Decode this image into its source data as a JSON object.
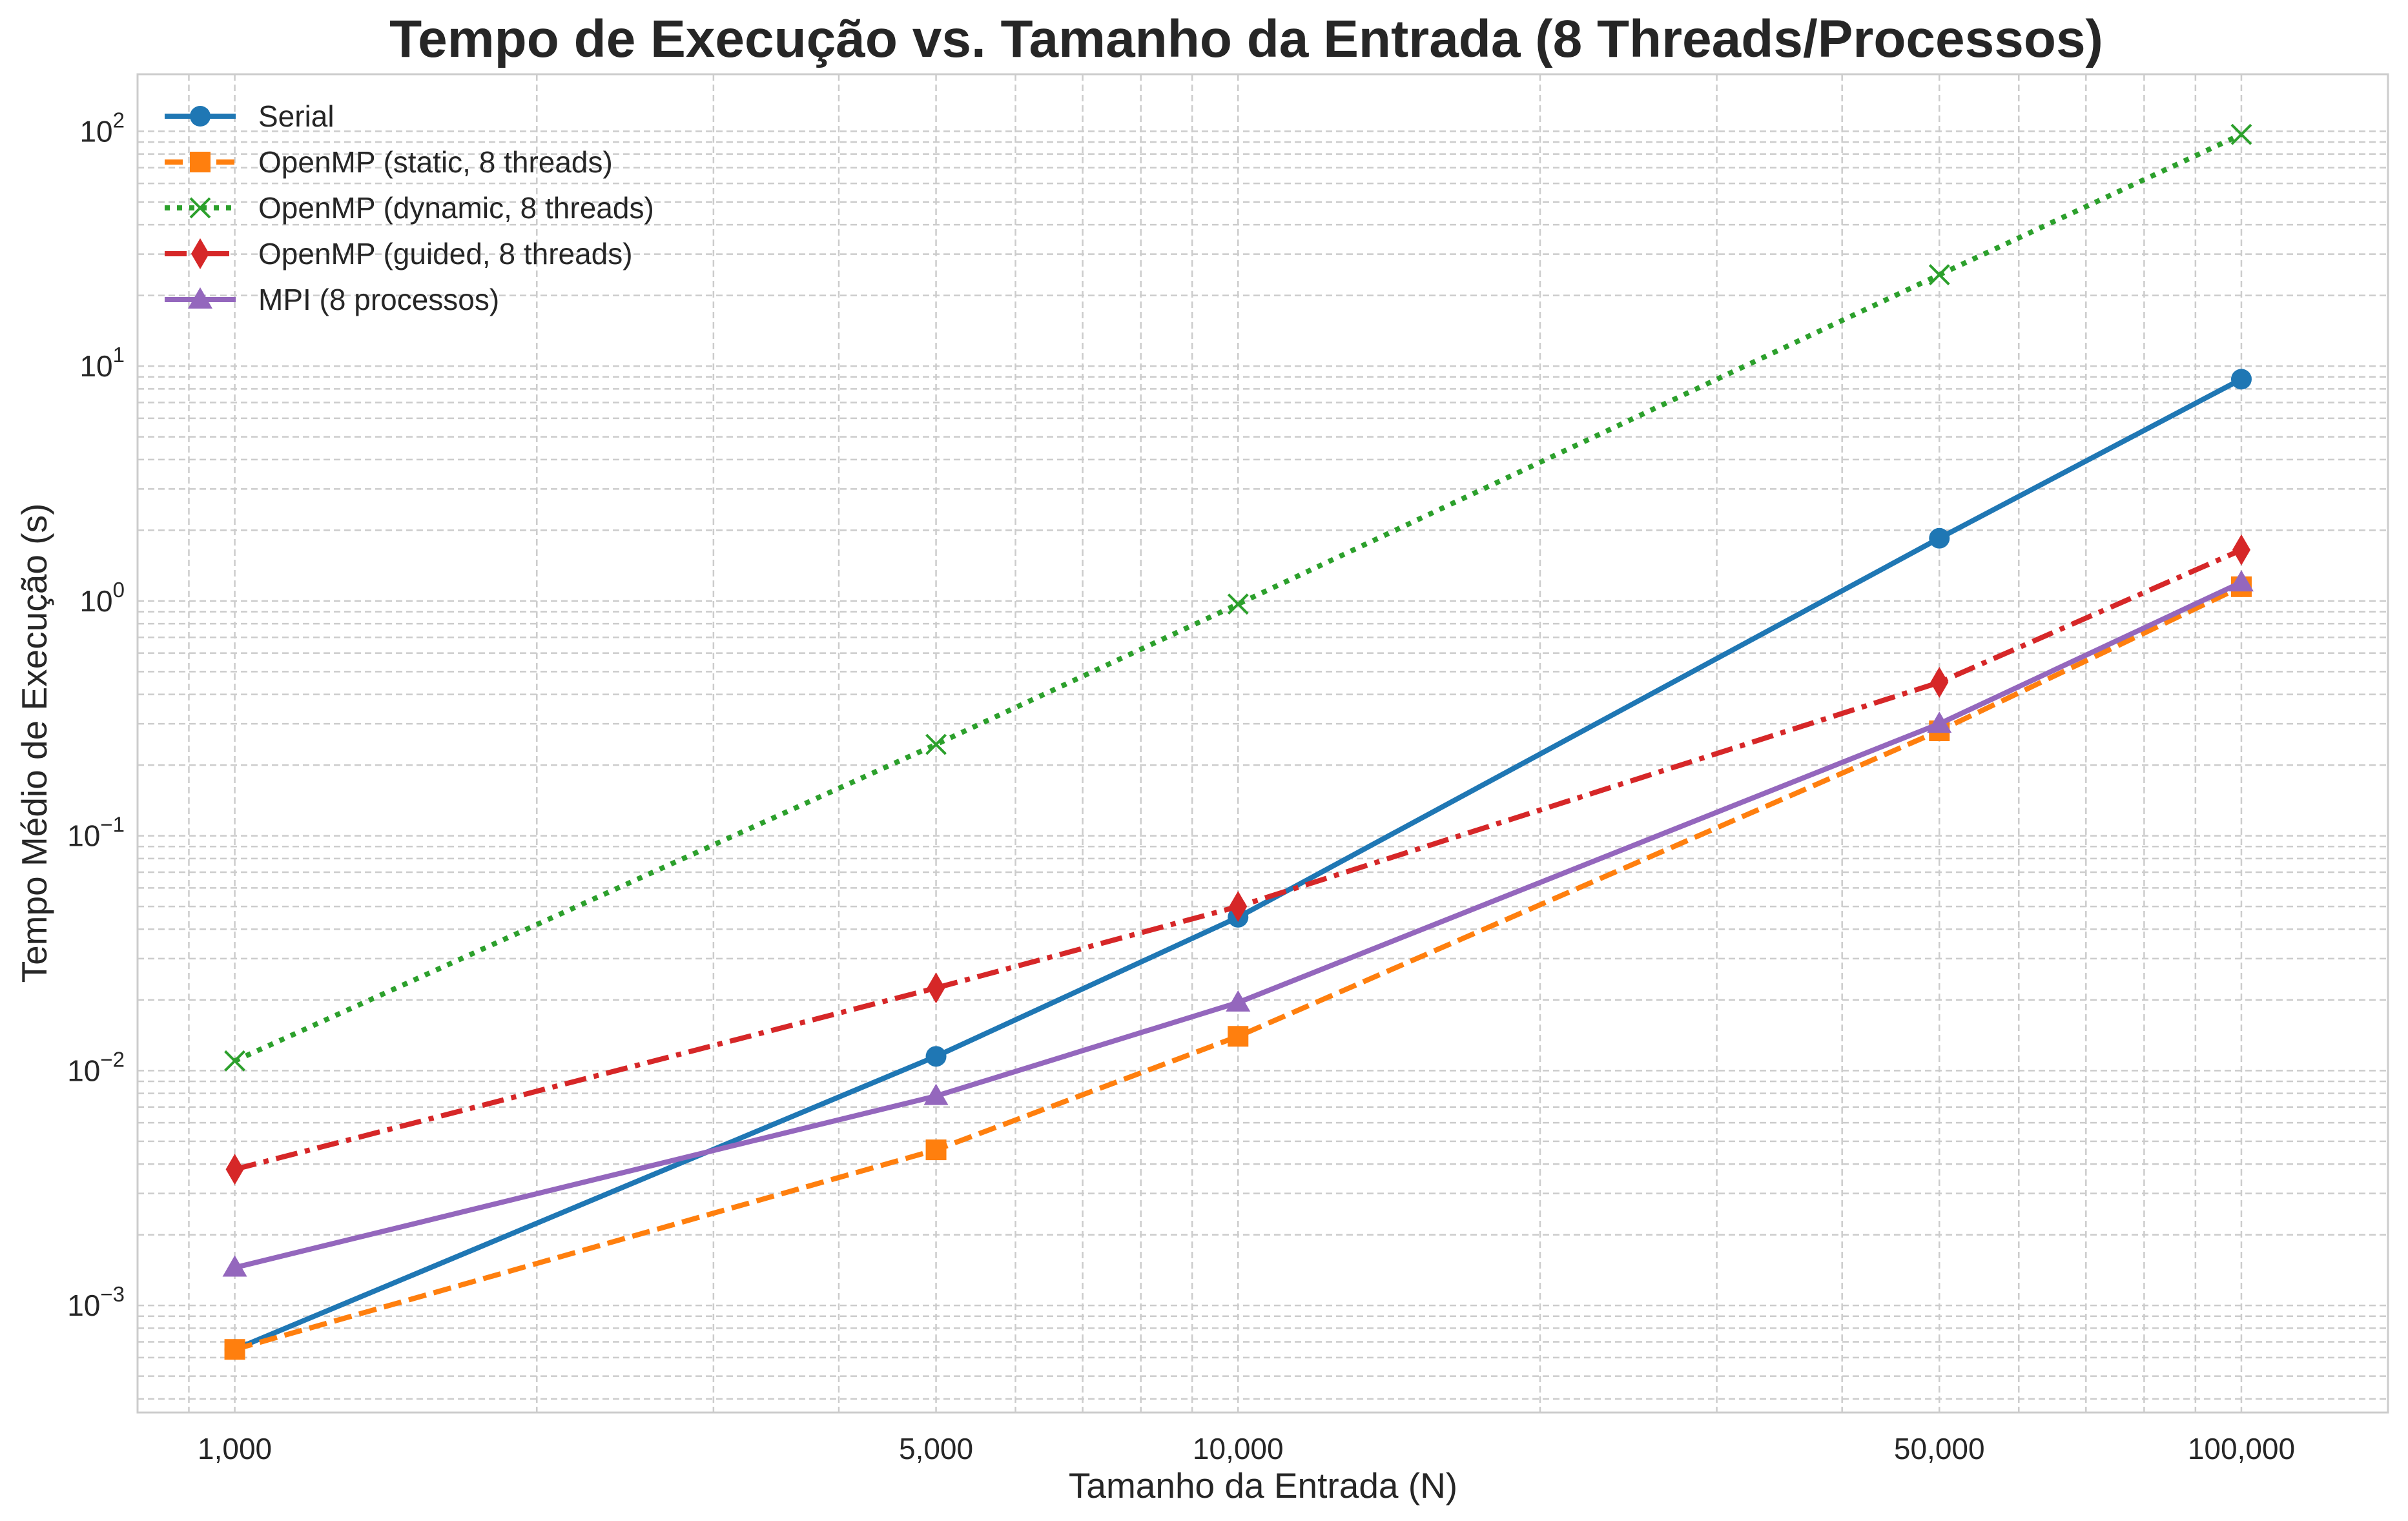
{
  "chart_data": {
    "type": "line",
    "title": "Tempo de Execução vs. Tamanho da Entrada (8 Threads/Processos)",
    "xlabel": "Tamanho da Entrada (N)",
    "ylabel": "Tempo Médio de Execução (s)",
    "xscale": "log",
    "yscale": "log",
    "xlim": [
      800,
      140000
    ],
    "ylim": [
      0.00035,
      175
    ],
    "grid": true,
    "legend_position": "upper-left",
    "x": [
      1000,
      5000,
      10000,
      50000,
      100000
    ],
    "x_tick_values": [
      1000,
      5000,
      10000,
      50000,
      100000
    ],
    "x_tick_labels": [
      "1,000",
      "5,000",
      "10,000",
      "50,000",
      "100,000"
    ],
    "y_ticks": [
      {
        "value": 0.001,
        "base": "10",
        "exp": "−3"
      },
      {
        "value": 0.01,
        "base": "10",
        "exp": "−2"
      },
      {
        "value": 0.1,
        "base": "10",
        "exp": "−1"
      },
      {
        "value": 1,
        "base": "10",
        "exp": "0"
      },
      {
        "value": 10,
        "base": "10",
        "exp": "1"
      },
      {
        "value": 100,
        "base": "10",
        "exp": "2"
      }
    ],
    "series": [
      {
        "name": "Serial",
        "color": "#1f77b4",
        "dash": "solid",
        "marker": "circle",
        "values": [
          0.00065,
          0.0115,
          0.045,
          1.85,
          8.8
        ]
      },
      {
        "name": "OpenMP (static, 8 threads)",
        "color": "#ff7f0e",
        "dash": "dashed",
        "marker": "square",
        "values": [
          0.00065,
          0.0046,
          0.014,
          0.28,
          1.15
        ]
      },
      {
        "name": "OpenMP (dynamic, 8 threads)",
        "color": "#2ca02c",
        "dash": "dotted",
        "marker": "x",
        "values": [
          0.011,
          0.245,
          0.97,
          24.5,
          97
        ]
      },
      {
        "name": "OpenMP (guided, 8 threads)",
        "color": "#d62728",
        "dash": "dashdot",
        "marker": "diamond",
        "values": [
          0.0038,
          0.0225,
          0.05,
          0.45,
          1.65
        ]
      },
      {
        "name": "MPI (8 processos)",
        "color": "#9467bd",
        "dash": "solid",
        "marker": "triangle",
        "values": [
          0.00145,
          0.0078,
          0.0195,
          0.3,
          1.2
        ]
      }
    ]
  }
}
